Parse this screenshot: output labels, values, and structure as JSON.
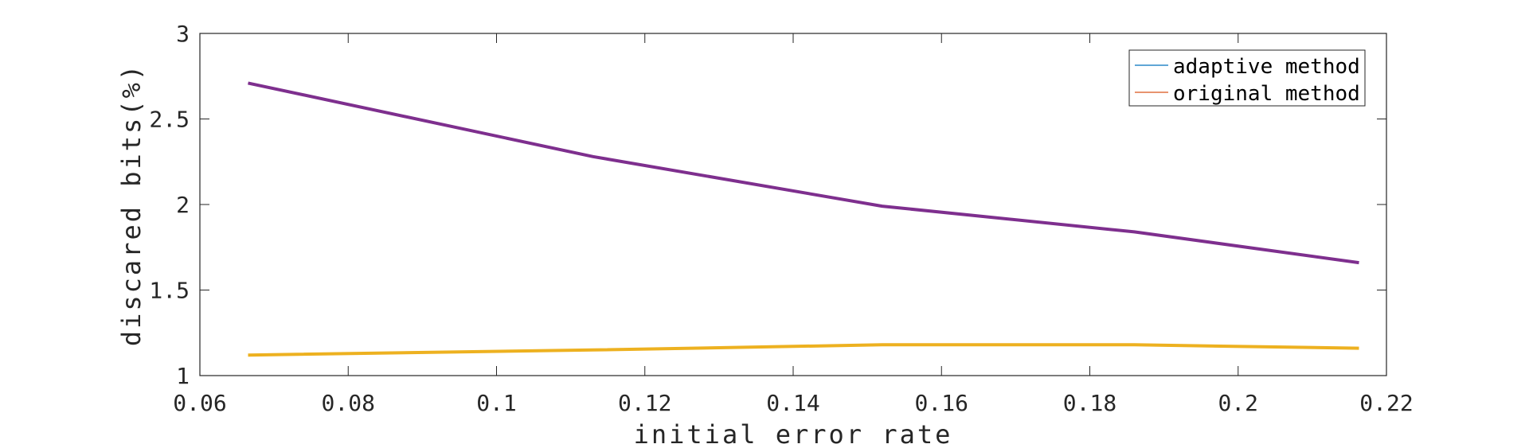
{
  "chart_data": {
    "type": "line",
    "title": "",
    "xlabel": "initial error rate",
    "ylabel": "discared bits(%)",
    "xlim": [
      0.06,
      0.22
    ],
    "ylim": [
      1,
      3
    ],
    "xticks": [
      0.06,
      0.08,
      0.1,
      0.12,
      0.14,
      0.16,
      0.18,
      0.2,
      0.22
    ],
    "xtick_labels": [
      "0.06",
      "0.08",
      "0.1",
      "0.12",
      "0.14",
      "0.16",
      "0.18",
      "0.2",
      "0.22"
    ],
    "yticks": [
      1,
      1.5,
      2,
      2.5,
      3
    ],
    "ytick_labels": [
      "1",
      "1.5",
      "2",
      "2.5",
      "3"
    ],
    "grid": false,
    "legend_position": "top-right",
    "legend": [
      {
        "label": "adaptive method",
        "color": "#0072BD"
      },
      {
        "label": "original method",
        "color": "#D95319"
      }
    ],
    "series": [
      {
        "color": "#7E2F8E",
        "x": [
          0.0665,
          0.113,
          0.152,
          0.186,
          0.2163
        ],
        "y": [
          2.71,
          2.28,
          1.99,
          1.84,
          1.66
        ]
      },
      {
        "color": "#EDB120",
        "x": [
          0.0665,
          0.113,
          0.152,
          0.186,
          0.2163
        ],
        "y": [
          1.12,
          1.15,
          1.18,
          1.18,
          1.16
        ]
      }
    ]
  }
}
